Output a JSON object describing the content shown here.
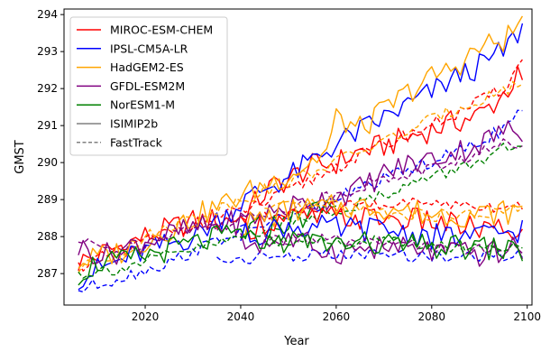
{
  "chart_data": {
    "type": "line",
    "title": "",
    "xlabel": "Year",
    "ylabel": "GMST",
    "xlim": [
      2003,
      2101
    ],
    "ylim": [
      286.15,
      294.15
    ],
    "xticks": [
      "2020",
      "2040",
      "2060",
      "2080",
      "2100"
    ],
    "yticks": [
      "287",
      "288",
      "289",
      "290",
      "291",
      "292",
      "293",
      "294"
    ],
    "legend_position": "top-left",
    "grid": false,
    "style_legend": [
      {
        "label": "ISIMIP2b",
        "dash": "solid",
        "color": "#808080"
      },
      {
        "label": "FastTrack",
        "dash": "dashed",
        "color": "#808080"
      }
    ],
    "series": [
      {
        "name": "MIROC-ESM-CHEM",
        "color": "#ff0000",
        "points": [
          [
            2006,
            287.3
          ],
          [
            2012,
            287.6
          ],
          [
            2020,
            288.0
          ],
          [
            2030,
            288.4
          ],
          [
            2040,
            288.5
          ],
          [
            2046,
            289.3
          ],
          [
            2050,
            289.55
          ],
          [
            2055,
            289.9
          ],
          [
            2060,
            290.0
          ],
          [
            2065,
            290.3
          ],
          [
            2070,
            290.45
          ],
          [
            2080,
            290.9
          ],
          [
            2090,
            291.3
          ],
          [
            2094,
            291.7
          ],
          [
            2098,
            292.3
          ],
          [
            2099,
            292.15
          ]
        ],
        "ft_points": [
          [
            2006,
            287.2
          ],
          [
            2015,
            287.6
          ],
          [
            2025,
            288.15
          ],
          [
            2035,
            288.5
          ],
          [
            2045,
            288.9
          ],
          [
            2055,
            289.55
          ],
          [
            2065,
            290.2
          ],
          [
            2075,
            290.75
          ],
          [
            2085,
            291.3
          ],
          [
            2095,
            292.0
          ],
          [
            2099,
            292.75
          ]
        ]
      },
      {
        "name": "IPSL-CM5A-LR",
        "color": "#0000ff",
        "points": [
          [
            2006,
            286.9
          ],
          [
            2012,
            287.2
          ],
          [
            2020,
            287.6
          ],
          [
            2030,
            288.0
          ],
          [
            2040,
            288.9
          ],
          [
            2045,
            289.3
          ],
          [
            2050,
            289.6
          ],
          [
            2060,
            290.5
          ],
          [
            2070,
            291.2
          ],
          [
            2080,
            291.9
          ],
          [
            2085,
            292.3
          ],
          [
            2090,
            292.6
          ],
          [
            2095,
            293.0
          ],
          [
            2099,
            293.65
          ]
        ],
        "ft_points": [
          [
            2006,
            286.55
          ],
          [
            2015,
            286.9
          ],
          [
            2025,
            287.3
          ],
          [
            2035,
            287.9
          ],
          [
            2045,
            288.35
          ],
          [
            2055,
            288.75
          ],
          [
            2065,
            289.3
          ],
          [
            2075,
            289.8
          ],
          [
            2085,
            290.25
          ],
          [
            2095,
            290.9
          ],
          [
            2099,
            291.4
          ]
        ]
      },
      {
        "name": "HadGEM2-ES",
        "color": "#ffa500",
        "points": [
          [
            2006,
            287.3
          ],
          [
            2015,
            287.6
          ],
          [
            2025,
            288.2
          ],
          [
            2035,
            288.8
          ],
          [
            2045,
            289.4
          ],
          [
            2052,
            289.8
          ],
          [
            2058,
            290.3
          ],
          [
            2060,
            291.2
          ],
          [
            2065,
            290.9
          ],
          [
            2070,
            291.4
          ],
          [
            2075,
            291.9
          ],
          [
            2080,
            292.3
          ],
          [
            2085,
            292.6
          ],
          [
            2090,
            293.1
          ],
          [
            2095,
            293.3
          ],
          [
            2099,
            293.8
          ]
        ],
        "ft_points": [
          [
            2006,
            287.1
          ],
          [
            2015,
            287.6
          ],
          [
            2025,
            288.3
          ],
          [
            2035,
            288.75
          ],
          [
            2045,
            289.25
          ],
          [
            2055,
            289.75
          ],
          [
            2065,
            290.3
          ],
          [
            2075,
            290.85
          ],
          [
            2085,
            291.45
          ],
          [
            2095,
            291.95
          ],
          [
            2099,
            292.15
          ]
        ]
      },
      {
        "name": "GFDL-ESM2M",
        "color": "#800080",
        "points": [
          [
            2006,
            287.7
          ],
          [
            2012,
            287.5
          ],
          [
            2020,
            287.9
          ],
          [
            2030,
            288.2
          ],
          [
            2040,
            288.4
          ],
          [
            2050,
            288.8
          ],
          [
            2060,
            289.1
          ],
          [
            2065,
            289.3
          ],
          [
            2070,
            289.7
          ],
          [
            2075,
            289.95
          ],
          [
            2080,
            290.1
          ],
          [
            2085,
            290.3
          ],
          [
            2090,
            290.5
          ],
          [
            2095,
            290.85
          ],
          [
            2099,
            290.85
          ]
        ],
        "ft_points": [
          [
            2006,
            287.85
          ],
          [
            2015,
            287.6
          ],
          [
            2025,
            288.1
          ],
          [
            2035,
            288.3
          ],
          [
            2045,
            288.6
          ],
          [
            2055,
            288.95
          ],
          [
            2065,
            289.35
          ],
          [
            2075,
            289.7
          ],
          [
            2085,
            290.0
          ],
          [
            2095,
            290.5
          ],
          [
            2099,
            290.5
          ]
        ]
      },
      {
        "name": "NorESM1-M",
        "color": "#008000",
        "points": [
          [
            2006,
            287.0
          ],
          [
            2010,
            287.3
          ],
          [
            2015,
            287.3
          ],
          [
            2020,
            287.5
          ],
          [
            2030,
            287.8
          ],
          [
            2040,
            288.1
          ],
          [
            2050,
            288.4
          ],
          [
            2060,
            288.9
          ]
        ],
        "ft_points": [
          [
            2006,
            287.0
          ],
          [
            2015,
            287.15
          ],
          [
            2025,
            287.5
          ],
          [
            2035,
            287.8
          ],
          [
            2045,
            288.2
          ],
          [
            2055,
            288.55
          ],
          [
            2065,
            288.9
          ],
          [
            2075,
            289.4
          ],
          [
            2085,
            289.8
          ],
          [
            2095,
            290.35
          ],
          [
            2099,
            290.3
          ]
        ]
      },
      {
        "name": "MIROC-ESM-CHEM (rcp2.6)",
        "color": "#ff0000",
        "points": [
          [
            2040,
            288.2
          ],
          [
            2050,
            288.5
          ],
          [
            2060,
            288.5
          ],
          [
            2070,
            288.5
          ],
          [
            2080,
            288.4
          ],
          [
            2090,
            288.2
          ],
          [
            2099,
            288.1
          ]
        ],
        "ft_points": [
          [
            2045,
            288.5
          ],
          [
            2055,
            288.75
          ],
          [
            2065,
            288.85
          ],
          [
            2075,
            288.9
          ],
          [
            2085,
            288.9
          ],
          [
            2095,
            288.8
          ],
          [
            2099,
            288.85
          ]
        ]
      },
      {
        "name": "HadGEM2-ES (rcp2.6)",
        "color": "#ffa500",
        "points": [
          [
            2040,
            288.3
          ],
          [
            2050,
            288.7
          ],
          [
            2060,
            288.8
          ],
          [
            2070,
            288.8
          ],
          [
            2080,
            288.6
          ],
          [
            2090,
            288.6
          ],
          [
            2099,
            288.7
          ]
        ],
        "ft_points": [
          [
            2045,
            288.7
          ],
          [
            2055,
            288.85
          ],
          [
            2065,
            288.75
          ],
          [
            2075,
            288.6
          ],
          [
            2085,
            288.55
          ],
          [
            2095,
            288.65
          ],
          [
            2099,
            288.75
          ]
        ]
      },
      {
        "name": "IPSL-CM5A-LR (rcp2.6)",
        "color": "#0000ff",
        "points": [
          [
            2040,
            288.0
          ],
          [
            2050,
            288.3
          ],
          [
            2060,
            288.2
          ],
          [
            2070,
            288.2
          ],
          [
            2080,
            288.0
          ],
          [
            2090,
            288.0
          ],
          [
            2099,
            288.2
          ]
        ],
        "ft_points": [
          [
            2035,
            287.35
          ],
          [
            2045,
            287.45
          ],
          [
            2055,
            287.5
          ],
          [
            2065,
            287.5
          ],
          [
            2075,
            287.5
          ],
          [
            2085,
            287.45
          ],
          [
            2095,
            287.5
          ],
          [
            2099,
            287.45
          ]
        ]
      },
      {
        "name": "GFDL-ESM2M (rcp2.6)",
        "color": "#800080",
        "points": [
          [
            2040,
            287.8
          ],
          [
            2050,
            287.9
          ],
          [
            2060,
            287.6
          ],
          [
            2070,
            287.7
          ],
          [
            2080,
            287.6
          ],
          [
            2090,
            287.5
          ],
          [
            2099,
            287.7
          ]
        ],
        "ft_points": [
          [
            2045,
            287.9
          ],
          [
            2055,
            287.95
          ],
          [
            2065,
            287.8
          ],
          [
            2075,
            287.75
          ],
          [
            2085,
            287.7
          ],
          [
            2095,
            287.65
          ],
          [
            2099,
            287.7
          ]
        ]
      },
      {
        "name": "NorESM1-M (rcp2.6)",
        "color": "#008000",
        "points": [
          [
            2040,
            287.8
          ],
          [
            2050,
            287.9
          ],
          [
            2060,
            287.8
          ],
          [
            2070,
            287.8
          ],
          [
            2080,
            287.7
          ],
          [
            2090,
            287.7
          ],
          [
            2099,
            287.6
          ]
        ],
        "ft_points": [
          [
            2045,
            287.9
          ],
          [
            2055,
            287.95
          ],
          [
            2065,
            287.85
          ],
          [
            2075,
            287.85
          ],
          [
            2085,
            287.75
          ],
          [
            2095,
            287.75
          ],
          [
            2099,
            287.7
          ]
        ]
      }
    ]
  }
}
